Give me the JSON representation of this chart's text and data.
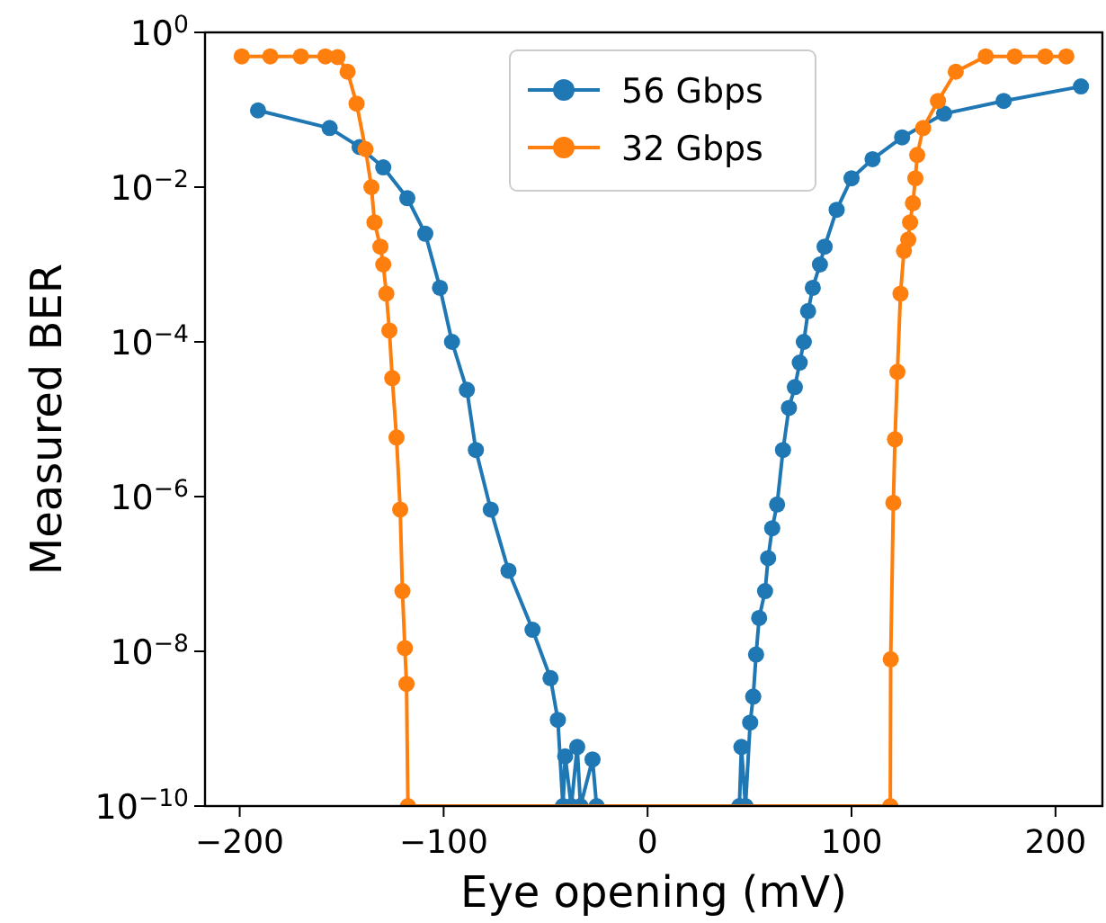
{
  "chart_data": {
    "type": "line",
    "xlabel": "Eye opening (mV)",
    "ylabel": "Measured BER",
    "log": "y",
    "marker": "circle",
    "line_style": "solid",
    "legend": "top",
    "grid": false,
    "xlim": [
      -217,
      223
    ],
    "xticks": [
      {
        "value": -200,
        "label": "−200"
      },
      {
        "value": -100,
        "label": "−100"
      },
      0,
      100,
      200
    ],
    "ylim": [
      1e-10,
      1
    ],
    "yticks": [
      {
        "value": 1e-10,
        "label": "10$^{−10}$"
      },
      {
        "value": 1e-08,
        "label": "10$^{−8}$"
      },
      {
        "value": 1e-06,
        "label": "10$^{−6}$"
      },
      {
        "value": 0.0001,
        "label": "10$^{−4}$"
      },
      {
        "value": 0.01,
        "label": "10$^{−2}$"
      },
      {
        "value": 1,
        "label": "10$^{0}$"
      }
    ],
    "series": [
      {
        "name": "56 Gbps",
        "color": "#1f77b4",
        "x": [
          -191,
          -155.9,
          -141.2,
          -129.6,
          -117.8,
          -109,
          -101.8,
          -95.9,
          -88.6,
          -84.2,
          -76.9,
          -68.2,
          -56.4,
          -47.6,
          -44,
          -41.5,
          -40.4,
          -37.4,
          -34.5,
          -32.9,
          -27,
          -25,
          45,
          46,
          48,
          50.3,
          51.8,
          53.2,
          54.7,
          57.6,
          59.1,
          61.1,
          63.5,
          66.4,
          69.3,
          72.2,
          74.6,
          76.6,
          78.7,
          81,
          84.5,
          86.8,
          92.7,
          100,
          110.3,
          124.8,
          145.4,
          174.6,
          212.5
        ],
        "values": [
          0.098,
          0.058,
          0.033,
          0.018,
          0.0072,
          0.0025,
          0.0005,
          0.0001,
          2.4e-05,
          4e-06,
          6.8e-07,
          1.1e-07,
          1.9e-08,
          4.5e-09,
          1.3e-09,
          1e-10,
          4.4e-10,
          1e-10,
          5.8e-10,
          1e-10,
          4e-10,
          1e-10,
          1e-10,
          5.8e-10,
          1e-10,
          1.2e-09,
          2.6e-09,
          9.1e-09,
          2.7e-08,
          6e-08,
          1.6e-07,
          3.9e-07,
          7.9e-07,
          4e-06,
          1.4e-05,
          2.6e-05,
          5.4e-05,
          0.0001,
          0.00025,
          0.0005,
          0.001,
          0.0017,
          0.0051,
          0.013,
          0.023,
          0.044,
          0.089,
          0.13,
          0.2
        ]
      },
      {
        "name": "32 Gbps",
        "color": "#ff7f0e",
        "x": [
          -199,
          -185,
          -170,
          -158,
          -152,
          -147.1,
          -142.7,
          -138.3,
          -135.4,
          -133.9,
          -131,
          -129.6,
          -128.1,
          -126.6,
          -125.2,
          -123.1,
          -121.3,
          -120.2,
          -119,
          -118.2,
          -117.5,
          119,
          119.2,
          120.5,
          121.3,
          122.5,
          124,
          125.7,
          127.8,
          128.7,
          130.1,
          131.3,
          132.2,
          135.1,
          142.4,
          151.1,
          165.8,
          180,
          195,
          205.3
        ],
        "values": [
          0.49,
          0.49,
          0.49,
          0.49,
          0.48,
          0.31,
          0.12,
          0.031,
          0.01,
          0.0035,
          0.0017,
          0.001,
          0.00042,
          0.00014,
          3.4e-05,
          5.8e-06,
          6.8e-07,
          6e-08,
          1.1e-08,
          3.8e-09,
          1e-10,
          1e-10,
          7.9e-09,
          8.3e-07,
          5.5e-06,
          4.1e-05,
          0.00042,
          0.0015,
          0.0021,
          0.0035,
          0.0062,
          0.013,
          0.026,
          0.058,
          0.13,
          0.31,
          0.49,
          0.49,
          0.49,
          0.49
        ]
      }
    ]
  }
}
